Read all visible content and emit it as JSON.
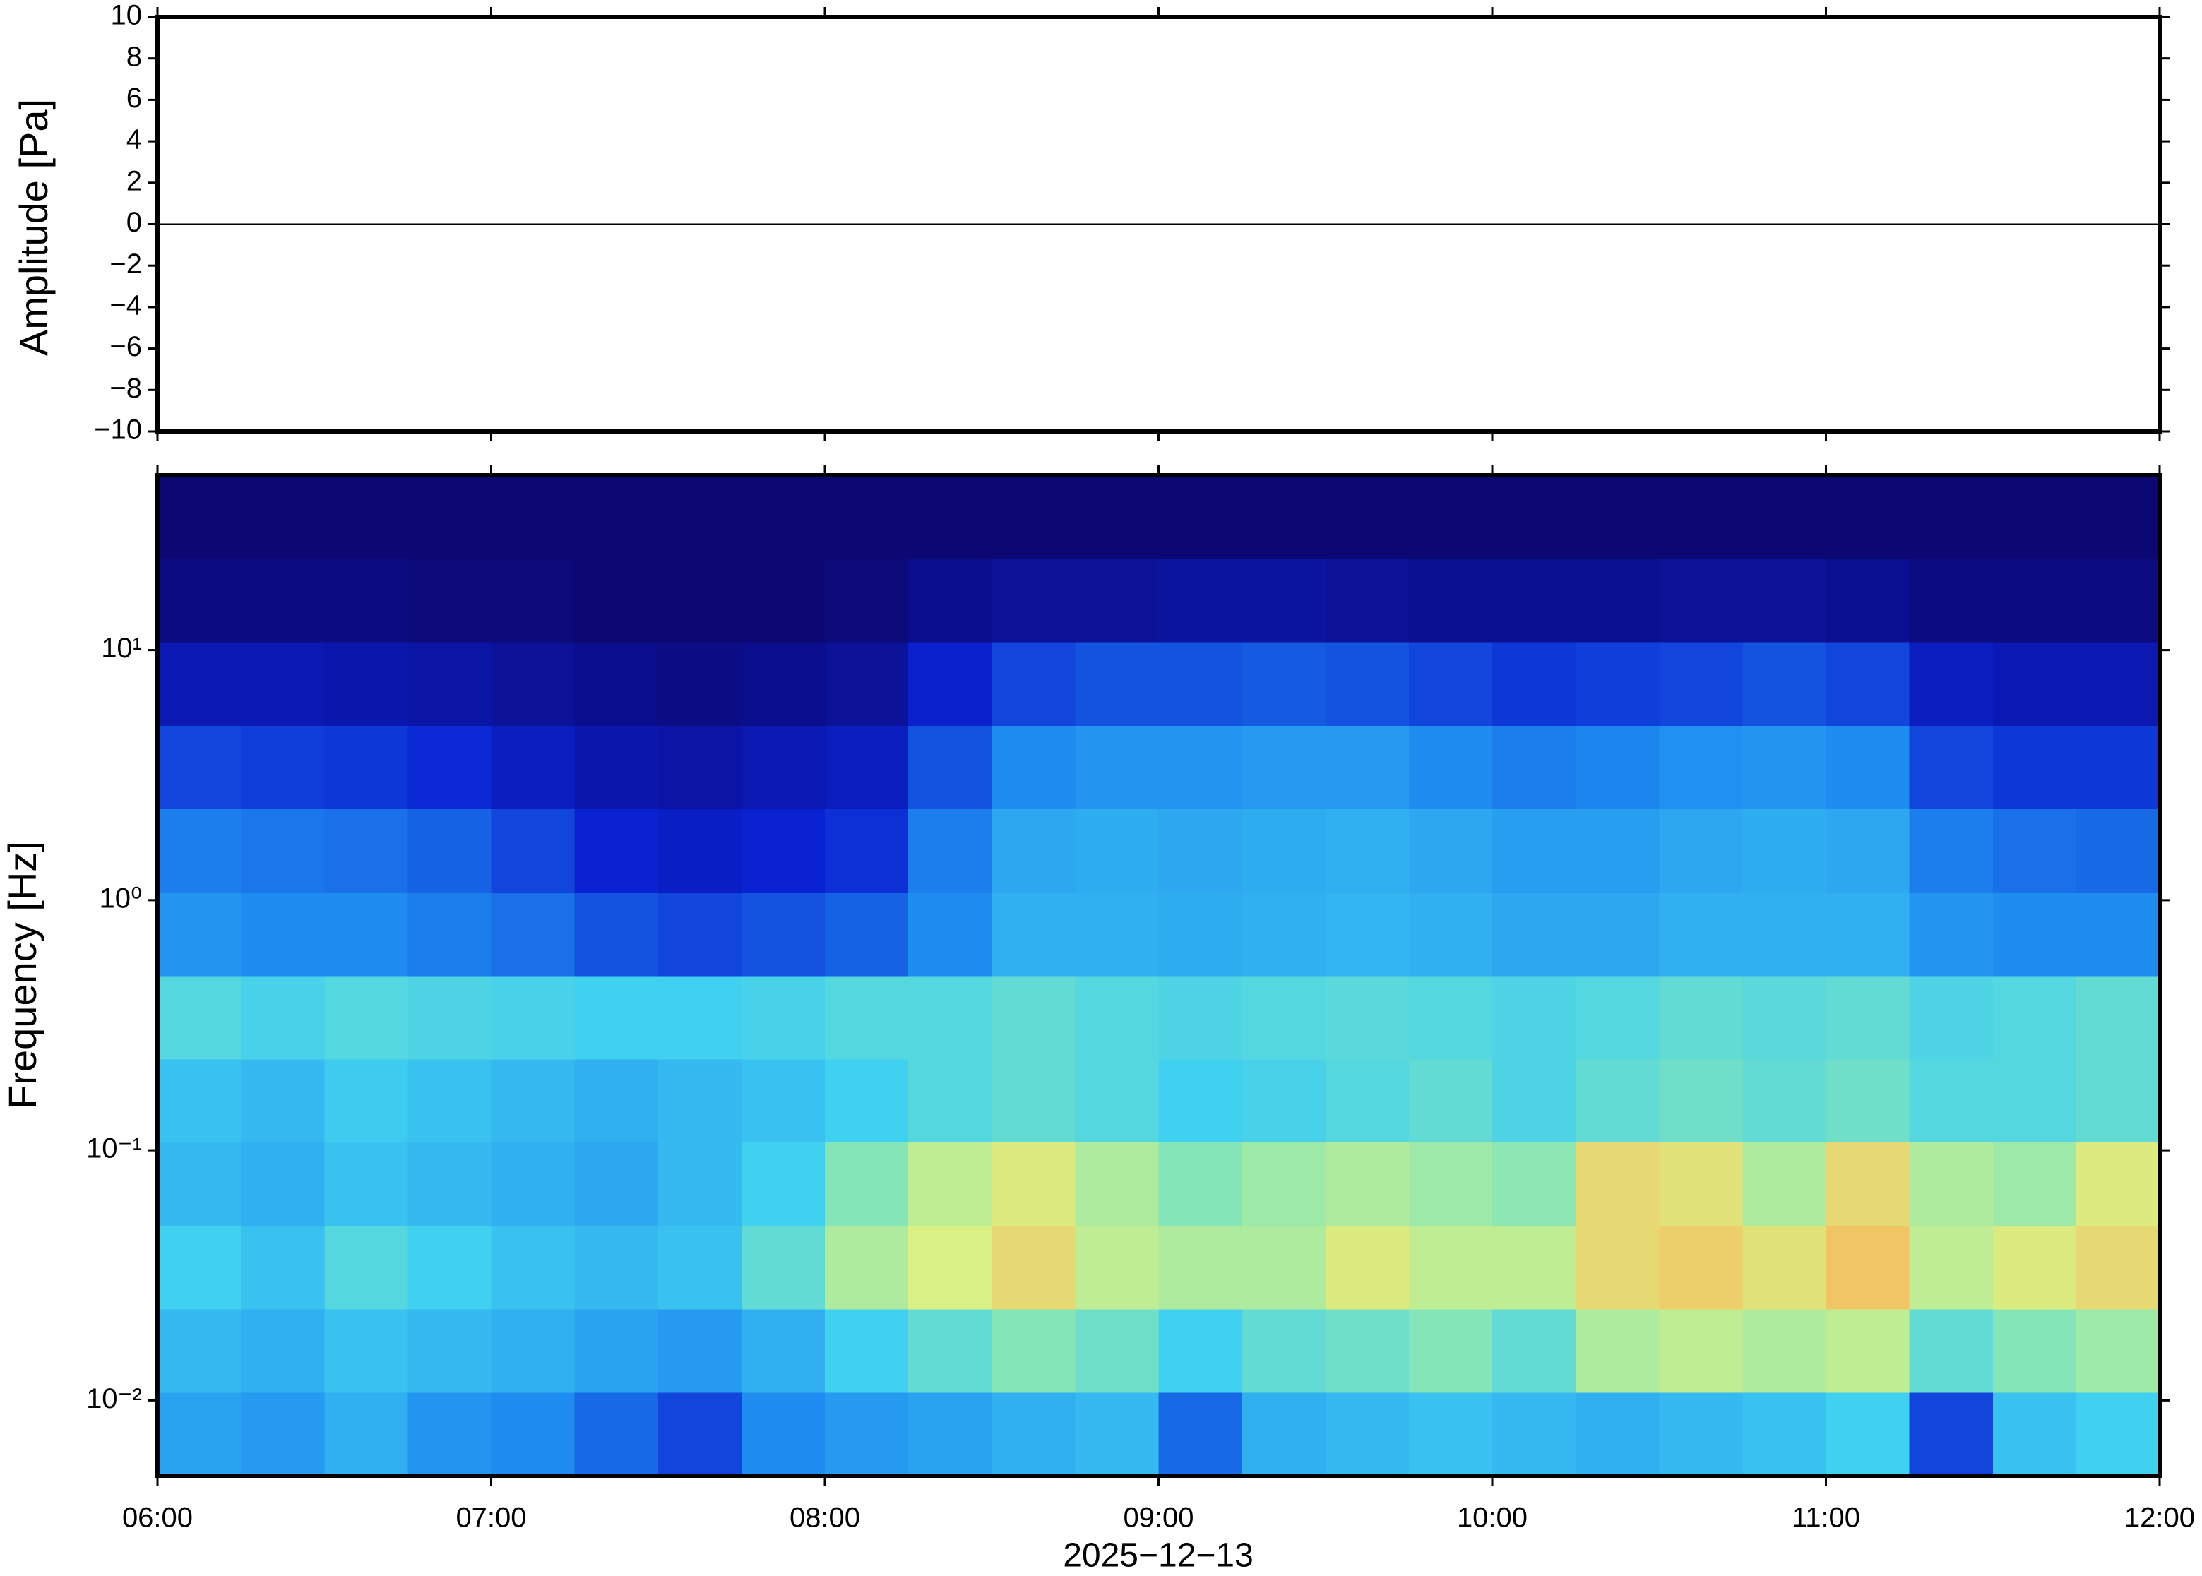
{
  "chart_data": [
    {
      "type": "line",
      "ylabel": "Amplitude [Pa]",
      "x": [
        6,
        6.5,
        7,
        7.5,
        8,
        8.5,
        9,
        9.5,
        10,
        10.5,
        11,
        11.5,
        12
      ],
      "values": [
        0,
        0,
        0,
        0,
        0,
        0,
        0,
        0,
        0,
        0,
        0,
        0,
        0
      ],
      "color": "#000000",
      "xlim": [
        6,
        12
      ],
      "ylim": [
        -10,
        10
      ],
      "yticks": [
        {
          "value": -10,
          "label": "−10"
        },
        {
          "value": -8,
          "label": "−8"
        },
        {
          "value": -6,
          "label": "−6"
        },
        {
          "value": -4,
          "label": "−4"
        },
        {
          "value": -2,
          "label": "−2"
        },
        0,
        2,
        4,
        6,
        8,
        10
      ]
    },
    {
      "type": "heatmap",
      "ylabel": "Frequency [Hz]",
      "xlabel": "2025−12−13",
      "xlim": [
        6,
        12
      ],
      "ylim": [
        0.005,
        50
      ],
      "log_y": true,
      "xticks": [
        {
          "value": 6,
          "label": "06:00"
        },
        {
          "value": 7,
          "label": "07:00"
        },
        {
          "value": 8,
          "label": "08:00"
        },
        {
          "value": 9,
          "label": "09:00"
        },
        {
          "value": 10,
          "label": "10:00"
        },
        {
          "value": 11,
          "label": "11:00"
        },
        {
          "value": 12,
          "label": "12:00"
        }
      ],
      "yticks": [
        {
          "value": 0.01,
          "label": "10⁻²"
        },
        {
          "value": 0.1,
          "label": "10⁻¹"
        },
        {
          "value": 1,
          "label": "10⁰"
        },
        {
          "value": 10,
          "label": "10¹"
        }
      ],
      "x_bins": [
        6,
        6.25,
        6.5,
        6.75,
        7,
        7.25,
        7.5,
        7.75,
        8,
        8.25,
        8.5,
        8.75,
        9,
        9.25,
        9.5,
        9.75,
        10,
        10.25,
        10.5,
        10.75,
        11,
        11.25,
        11.5,
        11.75,
        12
      ],
      "y_bins": [
        0.005,
        0.0108,
        0.0232,
        0.05,
        0.108,
        0.232,
        0.5,
        1.08,
        2.32,
        5,
        10.8,
        23.2,
        50
      ],
      "colorscale": {
        "stops": [
          0,
          0.15,
          0.3,
          0.45,
          0.55,
          0.65,
          0.75,
          0.85,
          1
        ],
        "colors": [
          "#0c0772",
          "#0a22d2",
          "#1e8cf0",
          "#40d0f0",
          "#84e6b8",
          "#d8f084",
          "#f5c060",
          "#f08040",
          "#d02020"
        ]
      },
      "z": [
        [
          0.35,
          0.33,
          0.38,
          0.32,
          0.3,
          0.25,
          0.2,
          0.3,
          0.33,
          0.35,
          0.38,
          0.4,
          0.25,
          0.38,
          0.4,
          0.42,
          0.4,
          0.38,
          0.4,
          0.42,
          0.45,
          0.2,
          0.42,
          0.45
        ],
        [
          0.4,
          0.38,
          0.42,
          0.4,
          0.38,
          0.35,
          0.33,
          0.38,
          0.45,
          0.5,
          0.55,
          0.52,
          0.45,
          0.5,
          0.52,
          0.55,
          0.5,
          0.6,
          0.62,
          0.6,
          0.62,
          0.5,
          0.55,
          0.58
        ],
        [
          0.45,
          0.42,
          0.48,
          0.45,
          0.42,
          0.4,
          0.42,
          0.5,
          0.6,
          0.65,
          0.7,
          0.62,
          0.6,
          0.6,
          0.66,
          0.62,
          0.62,
          0.7,
          0.72,
          0.68,
          0.74,
          0.62,
          0.66,
          0.7
        ],
        [
          0.4,
          0.38,
          0.42,
          0.4,
          0.38,
          0.36,
          0.4,
          0.45,
          0.55,
          0.62,
          0.66,
          0.6,
          0.55,
          0.58,
          0.6,
          0.58,
          0.56,
          0.7,
          0.68,
          0.6,
          0.7,
          0.6,
          0.58,
          0.66
        ],
        [
          0.42,
          0.4,
          0.44,
          0.42,
          0.4,
          0.38,
          0.4,
          0.42,
          0.45,
          0.48,
          0.5,
          0.48,
          0.45,
          0.46,
          0.48,
          0.5,
          0.47,
          0.5,
          0.52,
          0.5,
          0.52,
          0.48,
          0.48,
          0.5
        ],
        [
          0.48,
          0.46,
          0.48,
          0.47,
          0.46,
          0.45,
          0.45,
          0.46,
          0.48,
          0.48,
          0.5,
          0.48,
          0.47,
          0.48,
          0.49,
          0.48,
          0.47,
          0.48,
          0.5,
          0.49,
          0.5,
          0.47,
          0.48,
          0.5
        ],
        [
          0.32,
          0.3,
          0.3,
          0.28,
          0.26,
          0.22,
          0.2,
          0.22,
          0.24,
          0.3,
          0.38,
          0.38,
          0.37,
          0.38,
          0.39,
          0.38,
          0.36,
          0.36,
          0.38,
          0.38,
          0.38,
          0.32,
          0.3,
          0.3
        ],
        [
          0.28,
          0.27,
          0.26,
          0.24,
          0.2,
          0.15,
          0.13,
          0.15,
          0.17,
          0.28,
          0.36,
          0.37,
          0.36,
          0.37,
          0.38,
          0.36,
          0.34,
          0.34,
          0.36,
          0.37,
          0.36,
          0.28,
          0.26,
          0.25
        ],
        [
          0.2,
          0.19,
          0.18,
          0.16,
          0.12,
          0.09,
          0.08,
          0.1,
          0.12,
          0.22,
          0.3,
          0.32,
          0.32,
          0.33,
          0.33,
          0.3,
          0.28,
          0.29,
          0.31,
          0.32,
          0.3,
          0.2,
          0.18,
          0.18
        ],
        [
          0.1,
          0.1,
          0.09,
          0.08,
          0.06,
          0.04,
          0.03,
          0.04,
          0.06,
          0.14,
          0.2,
          0.22,
          0.22,
          0.23,
          0.22,
          0.2,
          0.18,
          0.19,
          0.2,
          0.22,
          0.2,
          0.12,
          0.1,
          0.1
        ],
        [
          0.02,
          0.02,
          0.02,
          0.01,
          0.01,
          0,
          0,
          0,
          0.01,
          0.04,
          0.06,
          0.06,
          0.07,
          0.07,
          0.06,
          0.05,
          0.05,
          0.05,
          0.06,
          0.06,
          0.05,
          0.02,
          0.02,
          0.02
        ],
        [
          0,
          0,
          0,
          0,
          0,
          0,
          0,
          0,
          0,
          0,
          0,
          0,
          0,
          0,
          0,
          0,
          0,
          0,
          0,
          0,
          0,
          0,
          0,
          0
        ]
      ]
    }
  ]
}
